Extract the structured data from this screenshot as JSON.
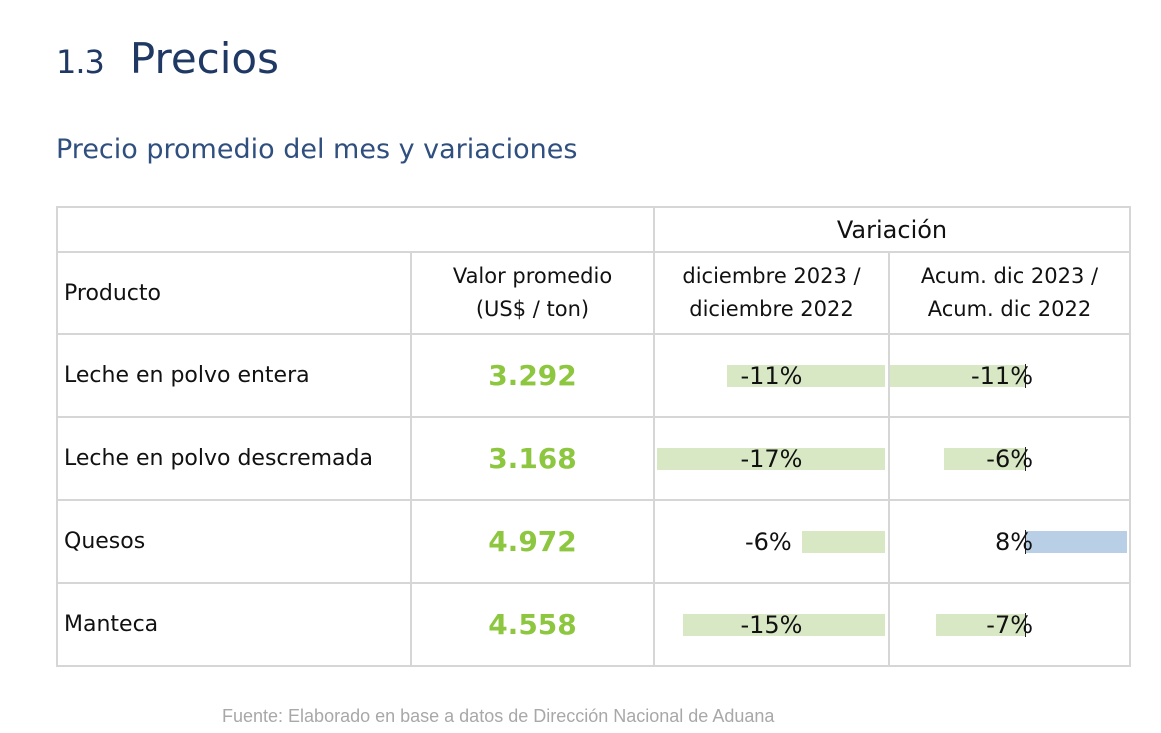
{
  "section": {
    "number": "1.3",
    "title": "Precios"
  },
  "subtitle": "Precio promedio del mes y variaciones",
  "table": {
    "group_header": "Variación",
    "headers": {
      "producto": "Producto",
      "valor_line1": "Valor promedio",
      "valor_line2": "(US$ / ton)",
      "mensual_line1": "diciembre 2023 /",
      "mensual_line2": "diciembre 2022",
      "acum_line1": "Acum. dic 2023 /",
      "acum_line2": "Acum. dic 2022"
    },
    "rows": [
      {
        "producto": "Leche en polvo entera",
        "valor": "3.292",
        "var_mensual": "-11%",
        "var_mensual_value": -11,
        "var_acum": "-11%",
        "var_acum_value": -11
      },
      {
        "producto": "Leche en polvo descremada",
        "valor": "3.168",
        "var_mensual": "-17%",
        "var_mensual_value": -17,
        "var_acum": "-6%",
        "var_acum_value": -6
      },
      {
        "producto": "Quesos",
        "valor": "4.972",
        "var_mensual": "-6%",
        "var_mensual_value": -6,
        "var_acum": "8%",
        "var_acum_value": 8
      },
      {
        "producto": "Manteca",
        "valor": "4.558",
        "var_mensual": "-15%",
        "var_mensual_value": -15,
        "var_acum": "-7%",
        "var_acum_value": -7
      }
    ]
  },
  "source": "Fuente: Elaborado en base a datos de Dirección Nacional de Aduana",
  "colors": {
    "title": "#1f3864",
    "value_green": "#8dc63f",
    "negative_bar": "#d9e8c4",
    "positive_bar": "#b8cfe6",
    "grid": "#d6d6d6",
    "source_text": "#a8a8a8"
  }
}
